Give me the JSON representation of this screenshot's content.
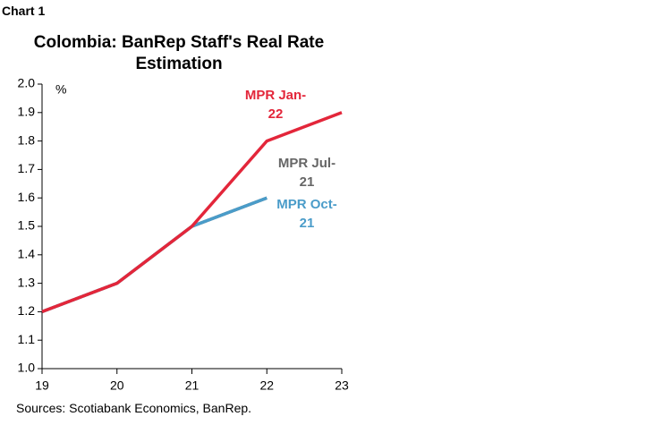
{
  "chart_data": {
    "type": "line",
    "header": "Chart 1",
    "title": "Colombia: BanRep Staff's Real Rate Estimation",
    "y_unit": "%",
    "source": "Sources: Scotiabank Economics, BanRep.",
    "x": [
      19,
      20,
      21,
      22,
      23
    ],
    "xlim": [
      19,
      23
    ],
    "xticks": [
      19,
      20,
      21,
      22,
      23
    ],
    "ylim": [
      1.0,
      2.0
    ],
    "yticks": [
      {
        "value": 1.0,
        "label": "1.0"
      },
      1.1,
      1.2,
      1.3,
      1.4,
      1.5,
      1.6,
      1.7,
      1.8,
      1.9,
      {
        "value": 2.0,
        "label": "2.0"
      }
    ],
    "grid": false,
    "series": [
      {
        "name": "MPR Jul-21",
        "color": "#666666",
        "values": [
          1.2,
          1.3,
          1.5,
          1.6,
          null
        ]
      },
      {
        "name": "MPR Oct-21",
        "color": "#4a9cc9",
        "values": [
          1.2,
          1.3,
          1.5,
          1.6,
          null
        ]
      },
      {
        "name": "MPR Jan-22",
        "color": "#e3263a",
        "values": [
          1.2,
          1.3,
          1.5,
          1.8,
          1.9
        ]
      }
    ]
  }
}
